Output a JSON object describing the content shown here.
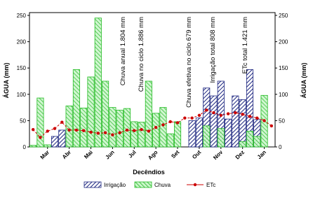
{
  "chart_data": {
    "type": "bar_line",
    "x_label": "Decêndios",
    "y_label": "ÁGUA (mm)",
    "y2_label": "ÁGUA (mm)",
    "categories": [
      null,
      null,
      "Mar",
      null,
      null,
      "Abr",
      null,
      null,
      "Mai",
      null,
      null,
      "Jun",
      null,
      null,
      "Jul",
      null,
      null,
      "Ago",
      null,
      null,
      "Set",
      null,
      null,
      "Out",
      null,
      null,
      "Nov",
      null,
      null,
      "Dez",
      null,
      null,
      "Jan",
      null
    ],
    "series": [
      {
        "name": "Irrigação",
        "color": "#1a237e",
        "kind": "bar",
        "values": [
          null,
          null,
          null,
          20,
          32,
          null,
          null,
          null,
          null,
          null,
          null,
          null,
          null,
          null,
          null,
          null,
          null,
          null,
          null,
          null,
          null,
          null,
          50,
          55,
          112,
          97,
          125,
          53,
          97,
          90,
          147,
          52,
          null,
          null
        ]
      },
      {
        "name": "Chuva",
        "color": "#22bb22",
        "kind": "bar",
        "values": [
          3,
          93,
          4,
          null,
          null,
          78,
          147,
          74,
          133,
          245,
          125,
          75,
          70,
          73,
          48,
          47,
          125,
          64,
          75,
          25,
          48,
          null,
          null,
          null,
          40,
          null,
          35,
          null,
          null,
          10,
          30,
          20,
          98,
          null
        ]
      },
      {
        "name": "ETc",
        "color": "#cc0000",
        "kind": "line",
        "values": [
          33,
          18,
          30,
          35,
          47,
          32,
          32,
          31,
          28,
          26,
          27,
          23,
          27,
          32,
          31,
          33,
          30,
          37,
          42,
          48,
          46,
          55,
          55,
          60,
          70,
          65,
          60,
          63,
          65,
          62,
          58,
          55,
          50,
          40
        ]
      }
    ],
    "ylim": [
      0,
      250
    ],
    "yticks": [
      0,
      50,
      100,
      150,
      200,
      250
    ],
    "y2lim": [
      0,
      250
    ],
    "y2ticks": [
      0,
      50,
      100,
      150,
      200,
      250
    ],
    "annotations": [
      {
        "text": "Chuva anual 1.804 mm",
        "color": "#22aa22"
      },
      {
        "text": "Chuva no ciclo 1.886 mm",
        "color": "#22aa22"
      },
      {
        "text": "Chuva efetiva no ciclo 679 mm",
        "color": "#1a237e"
      },
      {
        "text": "Irrigação total 808 mm",
        "color": "#1a237e"
      },
      {
        "text": "ETc total 1.421 mm",
        "color": "#cc0000"
      }
    ]
  }
}
